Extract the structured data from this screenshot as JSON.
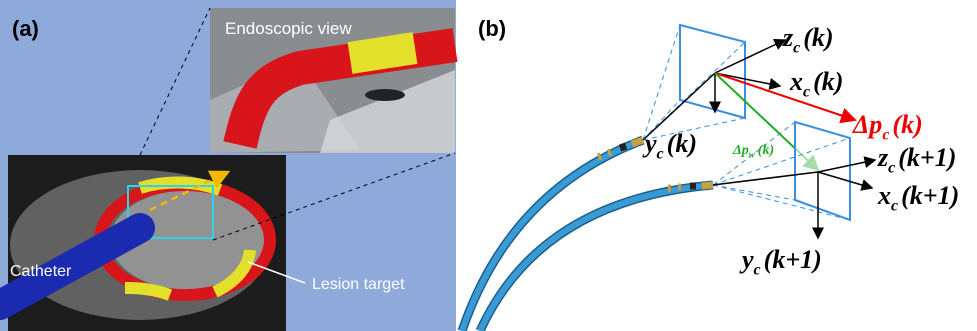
{
  "panel_a": {
    "label": "(a)",
    "inset_title": "Endoscopic view",
    "catheter_label": "Catheter",
    "lesion_label": "Lesion target"
  },
  "panel_b": {
    "label": "(b)",
    "vectors": [
      {
        "symbol": "z",
        "subscript": "c",
        "argument": "(k)"
      },
      {
        "symbol": "x",
        "subscript": "c",
        "argument": "(k)"
      },
      {
        "symbol": "Δp",
        "subscript": "c",
        "argument": "(k)"
      },
      {
        "symbol": "y",
        "subscript": "c",
        "argument": "(k)"
      },
      {
        "symbol": "Δp",
        "subscript": "w",
        "argument": "(k)"
      },
      {
        "symbol": "z",
        "subscript": "c",
        "argument": "(k+1)"
      },
      {
        "symbol": "x",
        "subscript": "c",
        "argument": "(k+1)"
      },
      {
        "symbol": "y",
        "subscript": "c",
        "argument": "(k+1)"
      }
    ]
  }
}
